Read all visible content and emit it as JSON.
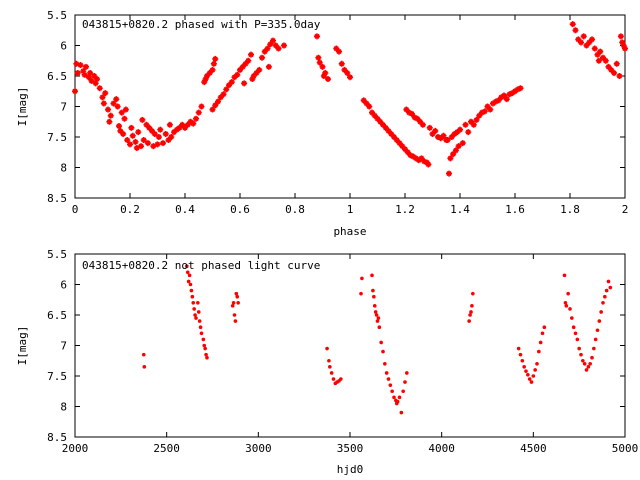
{
  "figure": {
    "background": "#ffffff",
    "point_color": "#ff0000"
  },
  "chart_data": [
    {
      "type": "scatter",
      "title": "043815+0820.2 phased with P=335.0day",
      "xlabel": "phase",
      "ylabel": "I[mag]",
      "xlim": [
        0,
        2
      ],
      "ylim": [
        8.5,
        5.5
      ],
      "y_inverted": true,
      "grid": false,
      "legend": "none",
      "xticks": [
        0,
        0.2,
        0.4,
        0.6,
        0.8,
        1,
        1.2,
        1.4,
        1.6,
        1.8,
        2
      ],
      "xtick_labels": [
        "0",
        "0.2",
        "0.4",
        "0.6",
        "0.8",
        "1",
        "1.2",
        "1.4",
        "1.6",
        "1.8",
        "2"
      ],
      "yticks": [
        5.5,
        6,
        6.5,
        7,
        7.5,
        8,
        8.5
      ],
      "ytick_labels": [
        "5.5",
        "6",
        "6.5",
        "7",
        "7.5",
        "8",
        "8.5"
      ],
      "marker": "plus",
      "points": [
        [
          0.0,
          6.75
        ],
        [
          0.005,
          6.3
        ],
        [
          0.01,
          6.45
        ],
        [
          0.02,
          6.32
        ],
        [
          0.03,
          6.42
        ],
        [
          0.035,
          6.48
        ],
        [
          0.04,
          6.35
        ],
        [
          0.05,
          6.52
        ],
        [
          0.055,
          6.45
        ],
        [
          0.06,
          6.58
        ],
        [
          0.07,
          6.5
        ],
        [
          0.075,
          6.62
        ],
        [
          0.08,
          6.55
        ],
        [
          0.09,
          6.7
        ],
        [
          0.1,
          6.85
        ],
        [
          0.105,
          6.95
        ],
        [
          0.11,
          6.78
        ],
        [
          0.12,
          7.05
        ],
        [
          0.125,
          7.25
        ],
        [
          0.13,
          7.15
        ],
        [
          0.14,
          6.95
        ],
        [
          0.15,
          6.88
        ],
        [
          0.155,
          7.0
        ],
        [
          0.16,
          7.32
        ],
        [
          0.165,
          7.4
        ],
        [
          0.17,
          7.1
        ],
        [
          0.175,
          7.45
        ],
        [
          0.18,
          7.2
        ],
        [
          0.185,
          7.05
        ],
        [
          0.19,
          7.55
        ],
        [
          0.2,
          7.62
        ],
        [
          0.205,
          7.35
        ],
        [
          0.21,
          7.48
        ],
        [
          0.22,
          7.58
        ],
        [
          0.225,
          7.68
        ],
        [
          0.23,
          7.42
        ],
        [
          0.24,
          7.65
        ],
        [
          0.245,
          7.22
        ],
        [
          0.25,
          7.55
        ],
        [
          0.26,
          7.3
        ],
        [
          0.265,
          7.6
        ],
        [
          0.27,
          7.35
        ],
        [
          0.28,
          7.4
        ],
        [
          0.285,
          7.65
        ],
        [
          0.29,
          7.45
        ],
        [
          0.3,
          7.62
        ],
        [
          0.305,
          7.5
        ],
        [
          0.31,
          7.38
        ],
        [
          0.32,
          7.6
        ],
        [
          0.33,
          7.45
        ],
        [
          0.34,
          7.55
        ],
        [
          0.345,
          7.3
        ],
        [
          0.35,
          7.5
        ],
        [
          0.36,
          7.42
        ],
        [
          0.37,
          7.38
        ],
        [
          0.38,
          7.35
        ],
        [
          0.39,
          7.3
        ],
        [
          0.4,
          7.35
        ],
        [
          0.41,
          7.3
        ],
        [
          0.42,
          7.25
        ],
        [
          0.43,
          7.28
        ],
        [
          0.44,
          7.2
        ],
        [
          0.45,
          7.1
        ],
        [
          0.46,
          7.0
        ],
        [
          0.47,
          6.6
        ],
        [
          0.475,
          6.55
        ],
        [
          0.48,
          6.5
        ],
        [
          0.49,
          6.45
        ],
        [
          0.5,
          6.4
        ],
        [
          0.505,
          6.3
        ],
        [
          0.51,
          6.22
        ],
        [
          0.5,
          7.05
        ],
        [
          0.51,
          6.98
        ],
        [
          0.52,
          6.92
        ],
        [
          0.53,
          6.85
        ],
        [
          0.54,
          6.8
        ],
        [
          0.55,
          6.72
        ],
        [
          0.56,
          6.65
        ],
        [
          0.57,
          6.6
        ],
        [
          0.58,
          6.52
        ],
        [
          0.59,
          6.48
        ],
        [
          0.6,
          6.4
        ],
        [
          0.61,
          6.35
        ],
        [
          0.615,
          6.62
        ],
        [
          0.62,
          6.3
        ],
        [
          0.63,
          6.25
        ],
        [
          0.64,
          6.15
        ],
        [
          0.645,
          6.55
        ],
        [
          0.65,
          6.5
        ],
        [
          0.66,
          6.45
        ],
        [
          0.67,
          6.4
        ],
        [
          0.68,
          6.2
        ],
        [
          0.69,
          6.1
        ],
        [
          0.7,
          6.05
        ],
        [
          0.705,
          6.35
        ],
        [
          0.71,
          5.98
        ],
        [
          0.72,
          5.92
        ],
        [
          0.73,
          6.0
        ],
        [
          0.74,
          6.05
        ],
        [
          0.76,
          6.0
        ],
        [
          0.88,
          5.85
        ],
        [
          0.885,
          6.2
        ],
        [
          0.89,
          6.28
        ],
        [
          0.9,
          6.35
        ],
        [
          0.905,
          6.5
        ],
        [
          0.91,
          6.45
        ],
        [
          0.92,
          6.55
        ],
        [
          0.95,
          6.05
        ],
        [
          0.96,
          6.1
        ],
        [
          0.97,
          6.3
        ],
        [
          0.98,
          6.4
        ],
        [
          0.99,
          6.45
        ],
        [
          1.0,
          6.52
        ],
        [
          1.05,
          6.9
        ],
        [
          1.06,
          6.95
        ],
        [
          1.07,
          7.0
        ],
        [
          1.08,
          7.1
        ],
        [
          1.09,
          7.15
        ],
        [
          1.1,
          7.2
        ],
        [
          1.11,
          7.25
        ],
        [
          1.12,
          7.3
        ],
        [
          1.13,
          7.35
        ],
        [
          1.14,
          7.4
        ],
        [
          1.15,
          7.45
        ],
        [
          1.16,
          7.5
        ],
        [
          1.17,
          7.55
        ],
        [
          1.18,
          7.6
        ],
        [
          1.19,
          7.65
        ],
        [
          1.2,
          7.7
        ],
        [
          1.205,
          7.05
        ],
        [
          1.21,
          7.75
        ],
        [
          1.215,
          7.1
        ],
        [
          1.22,
          7.8
        ],
        [
          1.225,
          7.12
        ],
        [
          1.23,
          7.82
        ],
        [
          1.235,
          7.18
        ],
        [
          1.24,
          7.85
        ],
        [
          1.245,
          7.2
        ],
        [
          1.25,
          7.88
        ],
        [
          1.255,
          7.25
        ],
        [
          1.26,
          7.85
        ],
        [
          1.265,
          7.3
        ],
        [
          1.27,
          7.9
        ],
        [
          1.28,
          7.92
        ],
        [
          1.285,
          7.95
        ],
        [
          1.29,
          7.35
        ],
        [
          1.3,
          7.45
        ],
        [
          1.31,
          7.4
        ],
        [
          1.32,
          7.5
        ],
        [
          1.33,
          7.52
        ],
        [
          1.34,
          7.48
        ],
        [
          1.35,
          7.55
        ],
        [
          1.355,
          7.55
        ],
        [
          1.36,
          8.1
        ],
        [
          1.365,
          7.85
        ],
        [
          1.37,
          7.5
        ],
        [
          1.375,
          7.78
        ],
        [
          1.38,
          7.45
        ],
        [
          1.385,
          7.72
        ],
        [
          1.39,
          7.42
        ],
        [
          1.395,
          7.65
        ],
        [
          1.4,
          7.38
        ],
        [
          1.41,
          7.6
        ],
        [
          1.42,
          7.3
        ],
        [
          1.43,
          7.42
        ],
        [
          1.44,
          7.25
        ],
        [
          1.45,
          7.3
        ],
        [
          1.46,
          7.22
        ],
        [
          1.47,
          7.15
        ],
        [
          1.48,
          7.1
        ],
        [
          1.49,
          7.08
        ],
        [
          1.5,
          7.0
        ],
        [
          1.51,
          7.05
        ],
        [
          1.52,
          6.95
        ],
        [
          1.53,
          6.92
        ],
        [
          1.54,
          6.9
        ],
        [
          1.55,
          6.85
        ],
        [
          1.56,
          6.82
        ],
        [
          1.57,
          6.88
        ],
        [
          1.58,
          6.8
        ],
        [
          1.59,
          6.78
        ],
        [
          1.6,
          6.75
        ],
        [
          1.61,
          6.72
        ],
        [
          1.62,
          6.7
        ],
        [
          1.81,
          5.65
        ],
        [
          1.82,
          5.75
        ],
        [
          1.83,
          5.9
        ],
        [
          1.84,
          5.95
        ],
        [
          1.85,
          5.85
        ],
        [
          1.86,
          6.0
        ],
        [
          1.87,
          5.95
        ],
        [
          1.88,
          5.9
        ],
        [
          1.89,
          6.05
        ],
        [
          1.9,
          6.15
        ],
        [
          1.905,
          6.25
        ],
        [
          1.91,
          6.1
        ],
        [
          1.92,
          6.2
        ],
        [
          1.93,
          6.25
        ],
        [
          1.94,
          6.35
        ],
        [
          1.95,
          6.4
        ],
        [
          1.96,
          6.45
        ],
        [
          1.97,
          6.3
        ],
        [
          1.98,
          6.5
        ],
        [
          1.985,
          5.85
        ],
        [
          1.99,
          5.95
        ],
        [
          1.995,
          6.0
        ],
        [
          2.0,
          6.05
        ]
      ]
    },
    {
      "type": "scatter",
      "title": "043815+0820.2 not phased light curve",
      "xlabel": "hjd0",
      "ylabel": "I[mag]",
      "xlim": [
        2000,
        5000
      ],
      "ylim": [
        8.5,
        5.5
      ],
      "y_inverted": true,
      "grid": false,
      "legend": "none",
      "xticks": [
        2000,
        2500,
        3000,
        3500,
        4000,
        4500,
        5000
      ],
      "xtick_labels": [
        "2000",
        "2500",
        "3000",
        "3500",
        "4000",
        "4500",
        "5000"
      ],
      "yticks": [
        5.5,
        6,
        6.5,
        7,
        7.5,
        8,
        8.5
      ],
      "ytick_labels": [
        "5.5",
        "6",
        "6.5",
        "7",
        "7.5",
        "8",
        "8.5"
      ],
      "marker": "dot",
      "points": [
        [
          2375,
          7.15
        ],
        [
          2378,
          7.35
        ],
        [
          2610,
          5.7
        ],
        [
          2615,
          5.8
        ],
        [
          2620,
          5.95
        ],
        [
          2625,
          5.85
        ],
        [
          2630,
          6.0
        ],
        [
          2635,
          6.1
        ],
        [
          2640,
          6.2
        ],
        [
          2645,
          6.3
        ],
        [
          2650,
          6.4
        ],
        [
          2655,
          6.5
        ],
        [
          2660,
          6.55
        ],
        [
          2670,
          6.3
        ],
        [
          2675,
          6.45
        ],
        [
          2680,
          6.6
        ],
        [
          2685,
          6.7
        ],
        [
          2690,
          6.8
        ],
        [
          2700,
          6.9
        ],
        [
          2705,
          7.0
        ],
        [
          2710,
          7.05
        ],
        [
          2715,
          7.15
        ],
        [
          2720,
          7.2
        ],
        [
          2860,
          6.35
        ],
        [
          2865,
          6.3
        ],
        [
          2870,
          6.5
        ],
        [
          2875,
          6.6
        ],
        [
          2880,
          6.15
        ],
        [
          2885,
          6.2
        ],
        [
          2890,
          6.3
        ],
        [
          3375,
          7.05
        ],
        [
          3385,
          7.25
        ],
        [
          3390,
          7.35
        ],
        [
          3400,
          7.45
        ],
        [
          3410,
          7.55
        ],
        [
          3420,
          7.62
        ],
        [
          3430,
          7.6
        ],
        [
          3440,
          7.58
        ],
        [
          3450,
          7.55
        ],
        [
          3560,
          6.15
        ],
        [
          3565,
          5.9
        ],
        [
          3620,
          5.85
        ],
        [
          3625,
          6.1
        ],
        [
          3630,
          6.2
        ],
        [
          3635,
          6.35
        ],
        [
          3640,
          6.45
        ],
        [
          3645,
          6.5
        ],
        [
          3650,
          6.6
        ],
        [
          3655,
          6.55
        ],
        [
          3660,
          6.7
        ],
        [
          3670,
          6.95
        ],
        [
          3680,
          7.1
        ],
        [
          3690,
          7.3
        ],
        [
          3700,
          7.45
        ],
        [
          3710,
          7.55
        ],
        [
          3720,
          7.65
        ],
        [
          3730,
          7.75
        ],
        [
          3740,
          7.85
        ],
        [
          3750,
          7.9
        ],
        [
          3755,
          7.95
        ],
        [
          3760,
          7.92
        ],
        [
          3770,
          7.85
        ],
        [
          3780,
          8.1
        ],
        [
          3790,
          7.75
        ],
        [
          3800,
          7.6
        ],
        [
          3810,
          7.45
        ],
        [
          4150,
          6.6
        ],
        [
          4155,
          6.5
        ],
        [
          4160,
          6.45
        ],
        [
          4165,
          6.35
        ],
        [
          4170,
          6.15
        ],
        [
          4420,
          7.05
        ],
        [
          4430,
          7.15
        ],
        [
          4440,
          7.25
        ],
        [
          4450,
          7.35
        ],
        [
          4460,
          7.42
        ],
        [
          4470,
          7.48
        ],
        [
          4480,
          7.55
        ],
        [
          4490,
          7.6
        ],
        [
          4500,
          7.5
        ],
        [
          4510,
          7.4
        ],
        [
          4520,
          7.3
        ],
        [
          4530,
          7.1
        ],
        [
          4540,
          6.95
        ],
        [
          4550,
          6.8
        ],
        [
          4560,
          6.7
        ],
        [
          4670,
          5.85
        ],
        [
          4675,
          6.3
        ],
        [
          4680,
          6.35
        ],
        [
          4690,
          6.15
        ],
        [
          4700,
          6.4
        ],
        [
          4710,
          6.55
        ],
        [
          4720,
          6.7
        ],
        [
          4730,
          6.8
        ],
        [
          4740,
          6.9
        ],
        [
          4750,
          7.05
        ],
        [
          4760,
          7.15
        ],
        [
          4770,
          7.25
        ],
        [
          4780,
          7.3
        ],
        [
          4790,
          7.4
        ],
        [
          4800,
          7.35
        ],
        [
          4810,
          7.3
        ],
        [
          4820,
          7.2
        ],
        [
          4830,
          7.05
        ],
        [
          4840,
          6.9
        ],
        [
          4850,
          6.75
        ],
        [
          4860,
          6.6
        ],
        [
          4870,
          6.45
        ],
        [
          4880,
          6.3
        ],
        [
          4890,
          6.2
        ],
        [
          4900,
          6.1
        ],
        [
          4910,
          5.95
        ],
        [
          4920,
          6.05
        ]
      ]
    }
  ]
}
